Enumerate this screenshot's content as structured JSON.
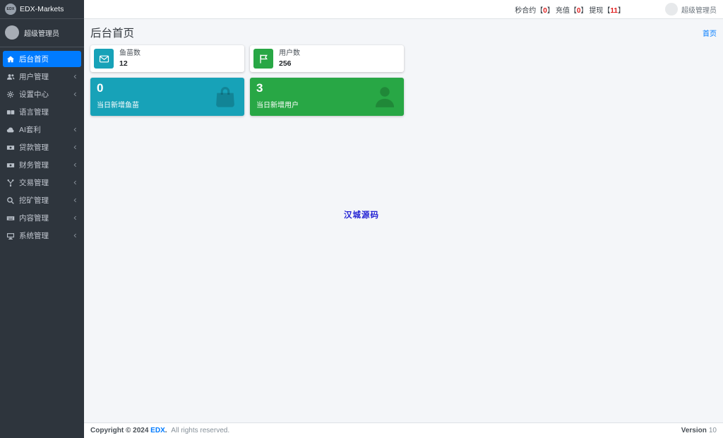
{
  "brand": {
    "logo_text": "EDX",
    "title": "EDX-Markets"
  },
  "sidebar": {
    "user_name": "超级管理员",
    "items": [
      {
        "label": "后台首页",
        "icon": "home-icon",
        "active": true,
        "chevron": false
      },
      {
        "label": "用户管理",
        "icon": "users-icon",
        "active": false,
        "chevron": true
      },
      {
        "label": "设置中心",
        "icon": "gears-icon",
        "active": false,
        "chevron": true
      },
      {
        "label": "语言管理",
        "icon": "language-icon",
        "active": false,
        "chevron": false
      },
      {
        "label": "AI套利",
        "icon": "cloud-icon",
        "active": false,
        "chevron": true
      },
      {
        "label": "贷款管理",
        "icon": "money-icon",
        "active": false,
        "chevron": true
      },
      {
        "label": "财务管理",
        "icon": "money-icon",
        "active": false,
        "chevron": true
      },
      {
        "label": "交易管理",
        "icon": "network-icon",
        "active": false,
        "chevron": true
      },
      {
        "label": "挖矿管理",
        "icon": "search-icon",
        "active": false,
        "chevron": true
      },
      {
        "label": "内容管理",
        "icon": "keyboard-icon",
        "active": false,
        "chevron": true
      },
      {
        "label": "系统管理",
        "icon": "desktop-icon",
        "active": false,
        "chevron": true
      }
    ]
  },
  "navbar": {
    "bracket_open": "【",
    "bracket_close": "】",
    "stats": [
      {
        "label": "秒合约",
        "value": "0"
      },
      {
        "label": "充值",
        "value": "0"
      },
      {
        "label": "提现",
        "value": "11"
      }
    ],
    "user_name": "超级管理员"
  },
  "content": {
    "page_title": "后台首页",
    "breadcrumb_home": "首页",
    "info_boxes": [
      {
        "label": "鱼苗数",
        "value": "12",
        "color": "#17a2b8",
        "icon": "envelope-icon"
      },
      {
        "label": "用户数",
        "value": "256",
        "color": "#28a745",
        "icon": "flag-icon"
      }
    ],
    "small_boxes": [
      {
        "value": "0",
        "label": "当日新增鱼苗",
        "color": "#17a2b8",
        "icon": "bag-icon"
      },
      {
        "value": "3",
        "label": "当日新增用户",
        "color": "#28a745",
        "icon": "person-icon"
      }
    ],
    "watermark": "汉城源码"
  },
  "footer": {
    "copyright_prefix": "Copyright © 2024",
    "brand": "EDX",
    "suffix": ".",
    "rights": "All rights reserved.",
    "version_label": "Version",
    "version_value": "10"
  },
  "colors": {
    "accent_blue": "#007bff",
    "info_teal": "#17a2b8",
    "success_green": "#28a745",
    "danger_red": "#e01e1e",
    "sidebar_bg": "#2e353d",
    "watermark_blue": "#2323d4"
  }
}
